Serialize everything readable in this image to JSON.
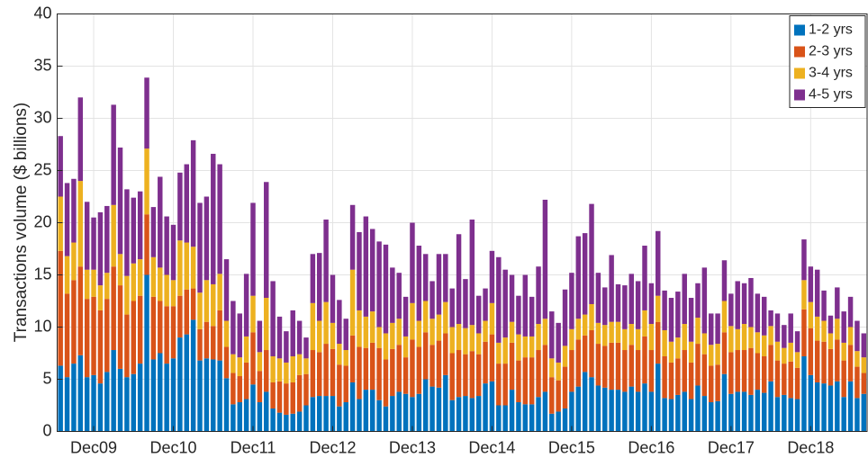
{
  "chart_data": {
    "type": "stacked-bar",
    "y_label": "Transactions volume ($ billions)",
    "categories": [
      null,
      null,
      null,
      null,
      null,
      "Dec09",
      null,
      null,
      null,
      null,
      null,
      null,
      null,
      null,
      null,
      null,
      null,
      "Dec10",
      null,
      null,
      null,
      null,
      null,
      null,
      null,
      null,
      null,
      null,
      null,
      "Dec11",
      null,
      null,
      null,
      null,
      null,
      null,
      null,
      null,
      null,
      null,
      null,
      "Dec12",
      null,
      null,
      null,
      null,
      null,
      null,
      null,
      null,
      null,
      null,
      null,
      "Dec13",
      null,
      null,
      null,
      null,
      null,
      null,
      null,
      null,
      null,
      null,
      null,
      "Dec14",
      null,
      null,
      null,
      null,
      null,
      null,
      null,
      null,
      null,
      null,
      null,
      "Dec15",
      null,
      null,
      null,
      null,
      null,
      null,
      null,
      null,
      null,
      null,
      null,
      "Dec16",
      null,
      null,
      null,
      null,
      null,
      null,
      null,
      null,
      null,
      null,
      null,
      "Dec17",
      null,
      null,
      null,
      null,
      null,
      null,
      null,
      null,
      null,
      null,
      null,
      "Dec18",
      null,
      null,
      null,
      null,
      null,
      null,
      null,
      null
    ],
    "series": [
      {
        "name": "1-2 yrs",
        "color": "#0072BD",
        "values": [
          6.3,
          5.2,
          6.5,
          7.3,
          5.2,
          5.4,
          4.6,
          5.7,
          7.8,
          6.0,
          5.2,
          5.5,
          6.5,
          15,
          6.9,
          7.5,
          6.5,
          7,
          9,
          9.3,
          10.7,
          6.8,
          7,
          6.9,
          6.8,
          5.1,
          2.6,
          2.8,
          3.1,
          4.5,
          2.8,
          3.8,
          2.2,
          1.8,
          1.6,
          1.7,
          1.9,
          2.5,
          3.3,
          3.4,
          3.4,
          3.4,
          2.4,
          2.8,
          4.7,
          3.1,
          4,
          4,
          3,
          2.4,
          3.4,
          3.8,
          3.6,
          3.3,
          3.6,
          5,
          4.3,
          4.2,
          5.4,
          3,
          3.3,
          3.4,
          3.2,
          3.4,
          4.6,
          4.8,
          2.5,
          2.5,
          4,
          2.8,
          2.6,
          2.6,
          3.3,
          3.8,
          1.7,
          1.9,
          2.2,
          3.8,
          4.3,
          5.7,
          5.2,
          4.4,
          4.2,
          4,
          4,
          3.8,
          4.3,
          3.8,
          4.6,
          3.8,
          6.5,
          3.2,
          3.1,
          3.5,
          3.8,
          3.1,
          4.4,
          3.4,
          2.8,
          2.9,
          5.5,
          3.6,
          3.8,
          3.8,
          3.5,
          4,
          3.7,
          4.8,
          3.3,
          3.5,
          3.2,
          3.1,
          7.2,
          5.4,
          4.7,
          4.6,
          4.4,
          4.8,
          3.3,
          4.8,
          3.2,
          3.6
        ]
      },
      {
        "name": "2-3 yrs",
        "color": "#D95319",
        "values": [
          11,
          8,
          8,
          8.5,
          7.5,
          7.5,
          7,
          7,
          8,
          8,
          6,
          7,
          6.5,
          5.8,
          6,
          5,
          5.5,
          5,
          4,
          4.3,
          3,
          3,
          3.5,
          3.2,
          4.8,
          3,
          3,
          2.5,
          3.5,
          5,
          3,
          4,
          2.5,
          3,
          3,
          3,
          3.5,
          3,
          4.5,
          4.2,
          5,
          4.5,
          4,
          3.5,
          4.5,
          5,
          4,
          4.5,
          5,
          4.5,
          4.5,
          4.5,
          3.5,
          5.5,
          4.5,
          4.5,
          4,
          4.5,
          4,
          4.5,
          4.5,
          4,
          4.5,
          4,
          4,
          4.5,
          4,
          4,
          4.5,
          4,
          4.5,
          4.5,
          4.5,
          4.5,
          3.5,
          3,
          4,
          4,
          4.5,
          3.5,
          4.5,
          4,
          4,
          4.5,
          4.5,
          4,
          4,
          4,
          4.5,
          4,
          4,
          4,
          3.5,
          3.5,
          4,
          3.5,
          4,
          4,
          3.5,
          3.5,
          4,
          4,
          4,
          4,
          4.5,
          3.5,
          3.5,
          3.5,
          3.5,
          3,
          3.5,
          3,
          4.5,
          4.5,
          4,
          4,
          3.5,
          4,
          3.5,
          3.5,
          3,
          2
        ]
      },
      {
        "name": "3-4 yrs",
        "color": "#EDB120",
        "values": [
          5.2,
          3.6,
          3.6,
          8.2,
          2.8,
          2.6,
          2.4,
          2.5,
          5.9,
          3,
          3.7,
          3.6,
          3.5,
          6.3,
          3.8,
          3.2,
          3,
          2.5,
          5.3,
          4.5,
          4,
          3.5,
          4,
          4,
          3.5,
          2.5,
          1.8,
          1.8,
          2.5,
          3.5,
          1.8,
          5,
          2.5,
          2.2,
          2,
          2.5,
          2,
          1.5,
          4.5,
          3,
          4,
          2.5,
          2,
          1.5,
          6.3,
          3.5,
          3,
          3,
          2,
          2.5,
          2.5,
          2.5,
          2,
          3.5,
          2.5,
          3,
          2.5,
          2.5,
          3,
          2.5,
          2.5,
          2.5,
          2.5,
          2,
          2,
          3,
          2,
          2.5,
          2,
          2.5,
          2,
          2,
          2.5,
          2.5,
          1.8,
          1.7,
          2,
          2,
          2,
          2,
          2.5,
          2,
          2,
          2,
          2,
          2,
          2,
          2,
          2.5,
          2.5,
          2.5,
          2.5,
          2,
          2,
          2.5,
          2,
          2.5,
          2,
          2,
          2,
          3,
          2.5,
          2,
          2.5,
          2,
          2,
          2,
          1.8,
          1.8,
          1.5,
          1.8,
          1.5,
          2.8,
          2.5,
          2.3,
          2,
          1.5,
          2,
          1.7,
          1.7,
          1.5,
          1.5
        ]
      },
      {
        "name": "4-5 yrs",
        "color": "#7E2F8E",
        "values": [
          5.8,
          7.0,
          6.1,
          8,
          6.5,
          5,
          7,
          6.4,
          9.6,
          10.2,
          8.3,
          6.3,
          6.5,
          6.8,
          4.8,
          8.7,
          5.6,
          5.3,
          6.5,
          7.5,
          10.2,
          8.6,
          8,
          12.5,
          10.5,
          5.9,
          5.1,
          4.2,
          6,
          8.9,
          3,
          11.1,
          7.2,
          4,
          3,
          4.4,
          3.2,
          2,
          4.7,
          6.5,
          7.9,
          4.6,
          4.2,
          3,
          6.2,
          7.5,
          9.6,
          7.9,
          8.2,
          8.5,
          5.3,
          4.4,
          3.8,
          7.7,
          7.2,
          4.5,
          3.6,
          5.8,
          4.6,
          3.7,
          8.6,
          4.7,
          10.1,
          3.6,
          3.1,
          5,
          8.2,
          6.5,
          4.5,
          3.7,
          5.9,
          3.8,
          5.5,
          11.4,
          4.5,
          3.8,
          5.4,
          5.4,
          7.9,
          7.8,
          9.6,
          4.8,
          3.6,
          6.4,
          3.6,
          4.2,
          4.8,
          4.6,
          6.2,
          3.9,
          6.2,
          3.8,
          4.2,
          4.4,
          4.8,
          4.2,
          3.3,
          6.3,
          3,
          2.9,
          3.9,
          3.1,
          4.6,
          3.9,
          4.7,
          3.7,
          3.7,
          1.5,
          2.7,
          2.2,
          2.8,
          2,
          3.9,
          3.4,
          4.5,
          2.9,
          1.7,
          3,
          3,
          2.9,
          2.9,
          2.3
        ]
      }
    ],
    "ylim": [
      0,
      40
    ],
    "yticks": [
      0,
      5,
      10,
      15,
      20,
      25,
      30,
      35,
      40
    ],
    "grid": true,
    "legend": "top-right"
  }
}
